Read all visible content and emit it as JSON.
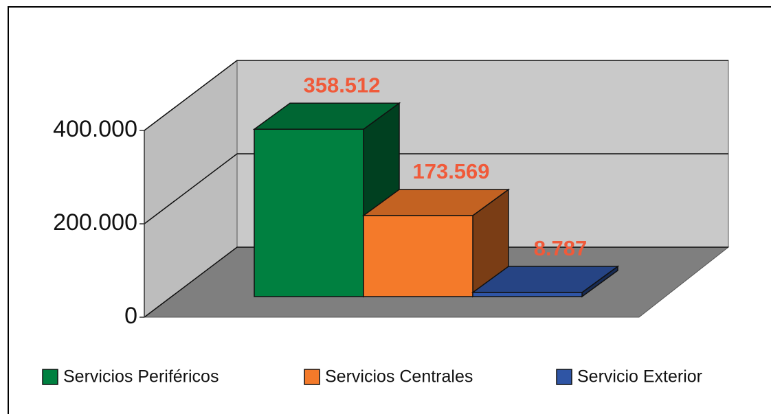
{
  "chart_data": {
    "type": "bar3d",
    "series": [
      {
        "name": "Servicios Periféricos",
        "color": "#008040",
        "values": [
          358512
        ],
        "value_labels": [
          "358.512"
        ]
      },
      {
        "name": "Servicios Centrales",
        "color": "#f47a2a",
        "values": [
          173569
        ],
        "value_labels": [
          "173.569"
        ]
      },
      {
        "name": "Servicio Exterior",
        "color": "#2f55a5",
        "values": [
          8787
        ],
        "value_labels": [
          "8.787"
        ]
      }
    ],
    "ylim": [
      0,
      400000
    ],
    "yticks": [
      0,
      {
        "value": 200000,
        "label": "200.000"
      },
      {
        "value": 400000,
        "label": "400.000"
      }
    ],
    "grid": true
  }
}
